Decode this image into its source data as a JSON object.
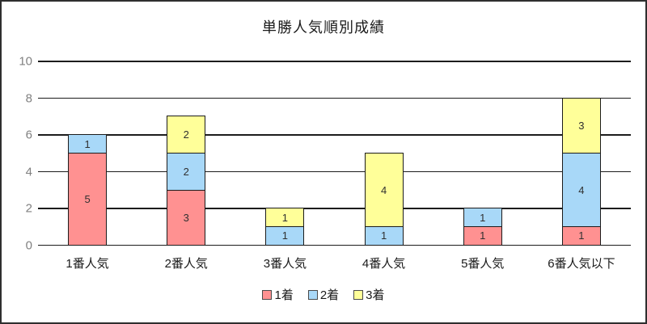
{
  "chart_data": {
    "type": "bar",
    "stacked": true,
    "title": "単勝人気順別成績",
    "categories": [
      "1番人気",
      "2番人気",
      "3番人気",
      "4番人気",
      "5番人気",
      "6番人気以下"
    ],
    "series": [
      {
        "name": "1着",
        "color": "#FF9191",
        "values": [
          5,
          3,
          0,
          0,
          1,
          1
        ]
      },
      {
        "name": "2着",
        "color": "#A8D8F8",
        "values": [
          1,
          2,
          1,
          1,
          1,
          4
        ]
      },
      {
        "name": "3着",
        "color": "#FFFF99",
        "values": [
          0,
          2,
          1,
          4,
          0,
          3
        ]
      }
    ],
    "ylim": [
      0,
      10
    ],
    "yticks": [
      0,
      2,
      4,
      6,
      8,
      10
    ],
    "grid": true,
    "legend_position": "bottom",
    "data_labels": true,
    "colors": {
      "gridline": "#1c1c1c",
      "tick_label": "#808080",
      "bar_border": "#1c1c1c"
    }
  }
}
